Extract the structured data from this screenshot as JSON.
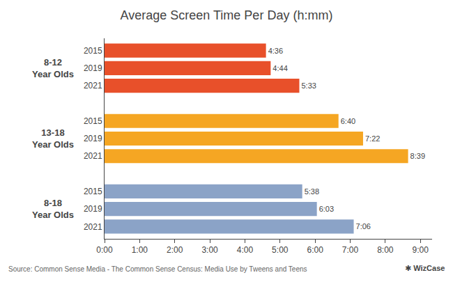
{
  "chart_data": {
    "type": "bar",
    "orientation": "horizontal",
    "title": "Average Screen Time Per Day (h:mm)",
    "categories": [
      "2015",
      "2019",
      "2021"
    ],
    "series": [
      {
        "name": "8-12\nYear Olds",
        "color": "#e8502a",
        "values": [
          276,
          284,
          333
        ],
        "value_labels": [
          "4:36",
          "4:44",
          "5:33"
        ]
      },
      {
        "name": "13-18\nYear Olds",
        "color": "#f5a623",
        "values": [
          400,
          442,
          519
        ],
        "value_labels": [
          "6:40",
          "7:22",
          "8:39"
        ]
      },
      {
        "name": "8-18\nYear Olds",
        "color": "#8ba3c7",
        "values": [
          338,
          363,
          426
        ],
        "value_labels": [
          "5:38",
          "6:03",
          "7:06"
        ]
      }
    ],
    "xlim": [
      0,
      560
    ],
    "xticks": [
      {
        "value": 0,
        "label": "0:00"
      },
      {
        "value": 60,
        "label": "1:00"
      },
      {
        "value": 120,
        "label": "2:00"
      },
      {
        "value": 180,
        "label": "3:00"
      },
      {
        "value": 240,
        "label": "4:00"
      },
      {
        "value": 300,
        "label": "5:00"
      },
      {
        "value": 360,
        "label": "6:00"
      },
      {
        "value": 420,
        "label": "7:00"
      },
      {
        "value": 480,
        "label": "8:00"
      },
      {
        "value": 540,
        "label": "9:00"
      }
    ],
    "grid": false,
    "data_labels": true,
    "annotations": [
      "Source: Common Sense Media - The Common Sense Census: Media Use by Tweens and Teens",
      "✱ WizCase"
    ]
  }
}
